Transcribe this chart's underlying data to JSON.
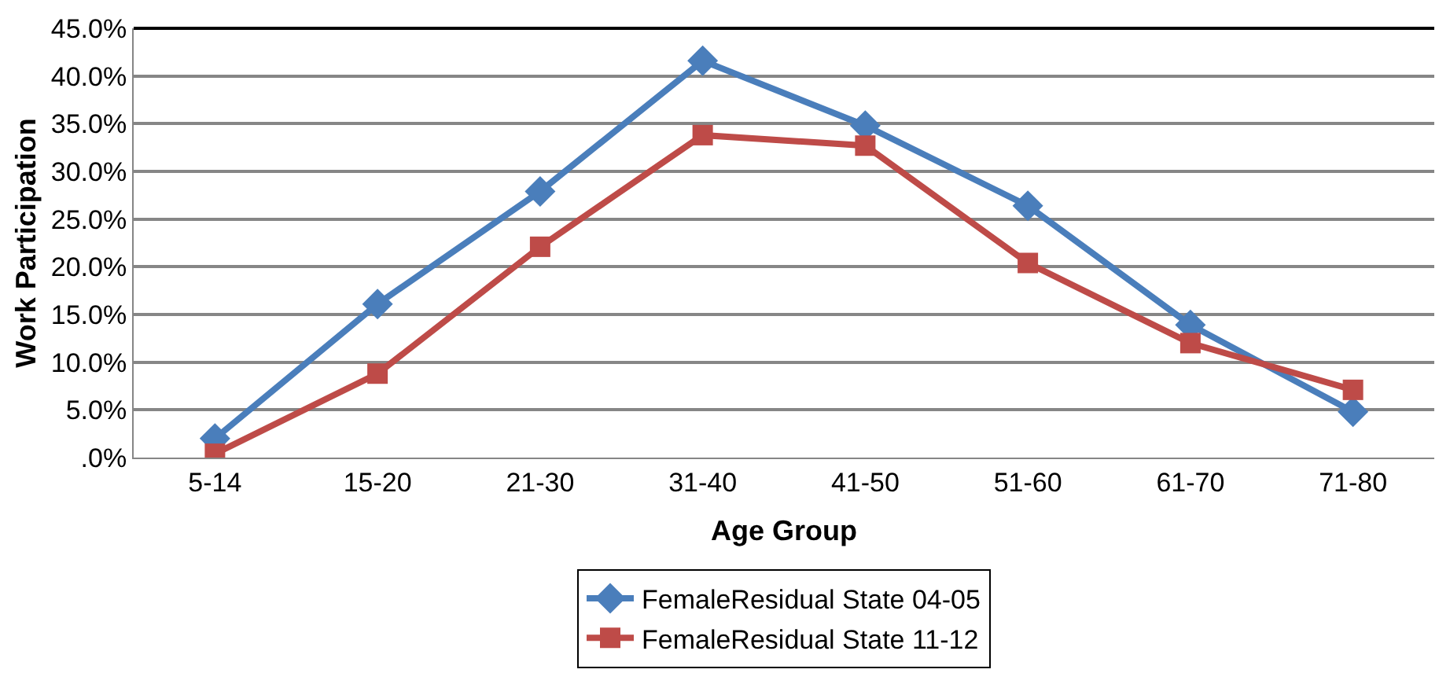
{
  "chart_data": {
    "type": "line",
    "xlabel": "Age Group",
    "ylabel": "Work Participation",
    "categories": [
      "5-14",
      "15-20",
      "21-30",
      "31-40",
      "41-50",
      "51-60",
      "61-70",
      "71-80"
    ],
    "series": [
      {
        "name": "FemaleResidual State 04-05",
        "color": "#4a7ebb",
        "marker": "diamond",
        "values": [
          2.0,
          16.1,
          27.9,
          41.6,
          34.8,
          26.4,
          13.9,
          4.8
        ]
      },
      {
        "name": "FemaleResidual State 11-12",
        "color": "#be4b48",
        "marker": "square",
        "values": [
          0.4,
          8.8,
          22.1,
          33.8,
          32.7,
          20.4,
          12.0,
          7.1
        ]
      }
    ],
    "ylim": [
      0,
      45
    ],
    "yticks": [
      {
        "value": 0,
        "label": ".0%"
      },
      {
        "value": 5,
        "label": "5.0%"
      },
      {
        "value": 10,
        "label": "10.0%"
      },
      {
        "value": 15,
        "label": "15.0%"
      },
      {
        "value": 20,
        "label": "20.0%"
      },
      {
        "value": 25,
        "label": "25.0%"
      },
      {
        "value": 30,
        "label": "30.0%"
      },
      {
        "value": 35,
        "label": "35.0%"
      },
      {
        "value": 40,
        "label": "40.0%"
      },
      {
        "value": 45,
        "label": "45.0%"
      }
    ],
    "grid": "y",
    "legend": "bottom",
    "line_style": "solid"
  }
}
